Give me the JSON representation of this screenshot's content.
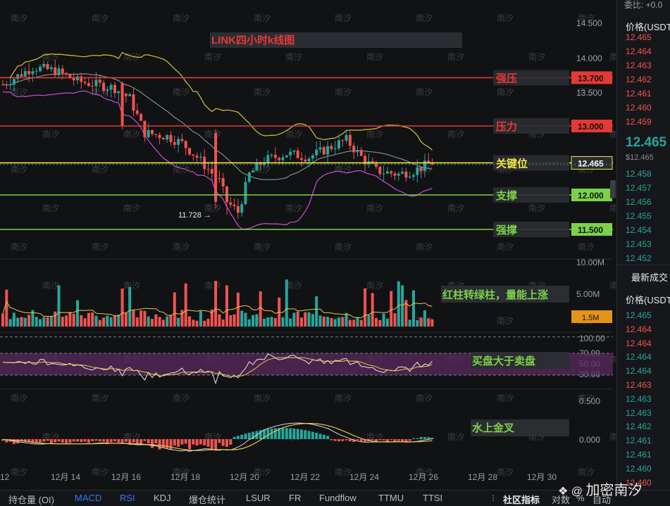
{
  "chart_data": {
    "type": "candlestick",
    "title": "LINK四小时k线图",
    "price_axis": {
      "ticks": [
        "14.500",
        "14.000",
        "13.500"
      ],
      "range": [
        11.5,
        14.6
      ]
    },
    "date_ticks": [
      "12",
      "12月 14",
      "12月 16",
      "12月 18",
      "12月 20",
      "12月 22",
      "12月 24",
      "12月 26",
      "12月 28",
      "12月 30"
    ],
    "low_marker": "11.728 →",
    "levels": [
      {
        "label": "强压",
        "price": "13.700",
        "value": 13.7,
        "color": "#e53935"
      },
      {
        "label": "压力",
        "price": "13.000",
        "value": 13.0,
        "color": "#e53935"
      },
      {
        "label": "关键位",
        "price": "12.465",
        "value": 12.465,
        "color": "#f5e642"
      },
      {
        "label": "支撑",
        "price": "12.000",
        "value": 12.0,
        "color": "#7cd14a"
      },
      {
        "label": "强撑",
        "price": "11.500",
        "value": 11.5,
        "color": "#7cd14a"
      }
    ],
    "current_price": "12.465",
    "volume": {
      "ticks": [
        "10.00M",
        "5.00M"
      ],
      "current": "1.5M",
      "annotation": "红柱转绿柱，量能上涨"
    },
    "rsi": {
      "ticks": [
        "100.00",
        "70.00",
        "50.00",
        "30.00"
      ],
      "annotation": "买盘大于卖盘"
    },
    "macd": {
      "ticks": [
        "0.500",
        "0.000"
      ],
      "annotation": "水上金叉"
    }
  },
  "sidebar": {
    "top": "委比: +0.0",
    "price_header": "价格(USDT",
    "asks": [
      "12.465",
      "12.464",
      "12.463",
      "12.462",
      "12.461",
      "12.460",
      "12.459"
    ],
    "last_price": "12.465",
    "last_sub": "$12.465",
    "bids": [
      "12.458",
      "12.457",
      "12.456",
      "12.455",
      "12.454",
      "12.453",
      "12.452"
    ],
    "trades_title": "最新成交",
    "trades_header": "价格(USDT",
    "trades": [
      {
        "p": "12.465",
        "side": "buy"
      },
      {
        "p": "12.464",
        "side": "sell"
      },
      {
        "p": "12.464",
        "side": "sell"
      },
      {
        "p": "12.464",
        "side": "buy"
      },
      {
        "p": "12.464",
        "side": "buy"
      },
      {
        "p": "12.463",
        "side": "sell"
      },
      {
        "p": "12.463",
        "side": "buy"
      },
      {
        "p": "12.463",
        "side": "buy"
      },
      {
        "p": "12.462",
        "side": "buy"
      },
      {
        "p": "12.461",
        "side": "buy"
      },
      {
        "p": "12.461",
        "side": "buy"
      },
      {
        "p": "12.460",
        "side": "buy"
      },
      {
        "p": "12.460",
        "side": "sell"
      }
    ]
  },
  "tabs": [
    "持仓量 (OI)",
    "MACD",
    "RSI",
    "KDJ",
    "爆仓统计",
    "LSUR",
    "FR",
    "Fundflow",
    "TTMU",
    "TTSI"
  ],
  "active_tabs": [
    "MACD",
    "RSI"
  ],
  "right_tools": [
    "社区指标",
    "对数",
    "%",
    "自动"
  ],
  "watermark_text": "加密南汐",
  "bg_watermark": "南汐"
}
